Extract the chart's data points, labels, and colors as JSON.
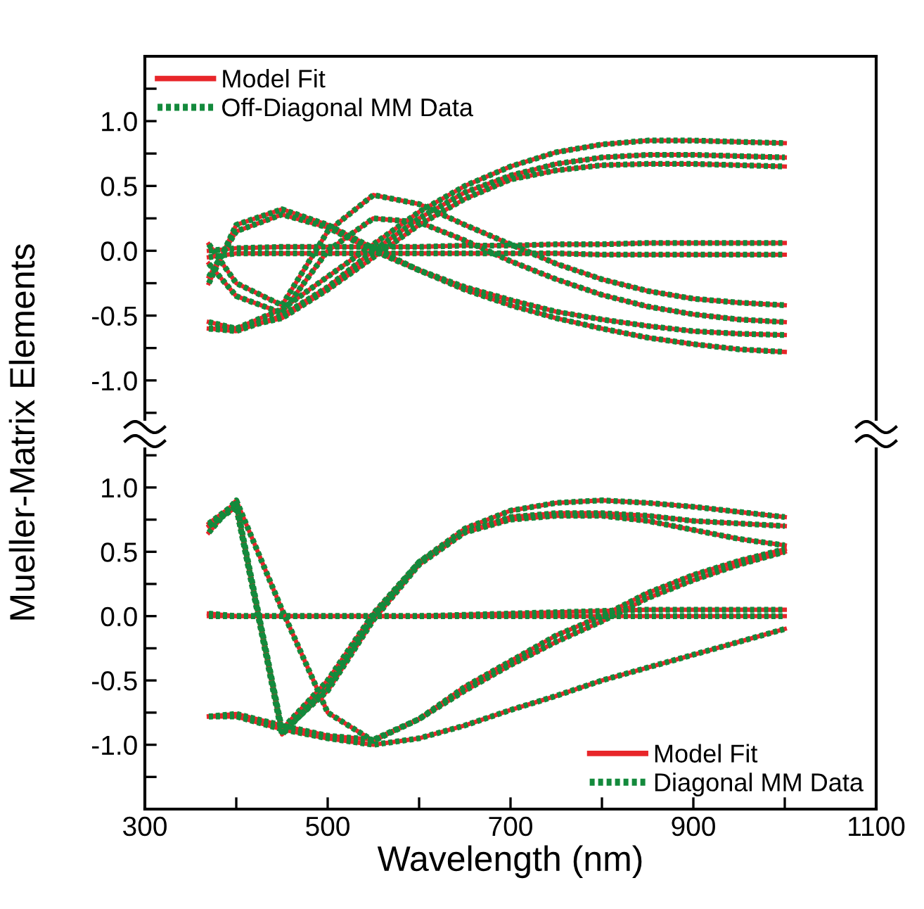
{
  "chart_data": [
    {
      "type": "line",
      "ylabel": "Mueller-Matrix Elements",
      "legend": "top left",
      "tick_labels": "y",
      "grid": false,
      "xlim": [
        300,
        1100
      ],
      "ylim": [
        -1.3,
        1.5
      ],
      "yticks": [
        {
          "value": -1.25,
          "label": null
        },
        {
          "value": -1.0,
          "label": "-1.0"
        },
        {
          "value": -0.75,
          "label": null
        },
        {
          "value": -0.5,
          "label": "-0.5"
        },
        {
          "value": -0.25,
          "label": null
        },
        {
          "value": 0.0,
          "label": "0.0"
        },
        {
          "value": 0.25,
          "label": null
        },
        {
          "value": 0.5,
          "label": "0.5"
        },
        {
          "value": 0.75,
          "label": null
        },
        {
          "value": 1.0,
          "label": "1.0"
        },
        {
          "value": 1.25,
          "label": null
        }
      ],
      "x": [
        370,
        400,
        450,
        500,
        550,
        600,
        650,
        700,
        750,
        800,
        850,
        900,
        950,
        1000
      ],
      "series": [
        {
          "name": "Model Fit",
          "color": "#e8262a",
          "line_style": "solid",
          "values": [
            -0.6,
            -0.6,
            -0.45,
            -0.2,
            0.05,
            0.3,
            0.5,
            0.65,
            0.76,
            0.82,
            0.85,
            0.85,
            0.84,
            0.83
          ]
        },
        {
          "name": "Off-Diagonal MM Data",
          "color": "#138a3c",
          "line_style": "dotted",
          "values": [
            -0.6,
            -0.6,
            -0.45,
            -0.2,
            0.05,
            0.3,
            0.5,
            0.65,
            0.76,
            0.82,
            0.85,
            0.85,
            0.84,
            0.83
          ]
        },
        {
          "color": "#e8262a",
          "line_style": "solid",
          "values": [
            -0.6,
            -0.62,
            -0.5,
            -0.28,
            0.0,
            0.25,
            0.45,
            0.58,
            0.67,
            0.72,
            0.74,
            0.74,
            0.73,
            0.72
          ]
        },
        {
          "color": "#138a3c",
          "line_style": "dotted",
          "values": [
            -0.6,
            -0.62,
            -0.5,
            -0.28,
            0.0,
            0.25,
            0.45,
            0.58,
            0.67,
            0.72,
            0.74,
            0.74,
            0.73,
            0.72
          ]
        },
        {
          "color": "#e8262a",
          "line_style": "solid",
          "values": [
            -0.55,
            -0.6,
            -0.52,
            -0.3,
            -0.05,
            0.2,
            0.4,
            0.55,
            0.62,
            0.66,
            0.67,
            0.67,
            0.66,
            0.65
          ]
        },
        {
          "color": "#138a3c",
          "line_style": "dotted",
          "values": [
            -0.55,
            -0.6,
            -0.52,
            -0.3,
            -0.05,
            0.2,
            0.4,
            0.55,
            0.62,
            0.66,
            0.67,
            0.67,
            0.66,
            0.65
          ]
        },
        {
          "color": "#e8262a",
          "line_style": "solid",
          "values": [
            0.0,
            0.02,
            0.03,
            0.03,
            0.03,
            0.03,
            0.04,
            0.04,
            0.05,
            0.05,
            0.06,
            0.06,
            0.06,
            0.06
          ]
        },
        {
          "color": "#138a3c",
          "line_style": "dotted",
          "values": [
            0.0,
            0.02,
            0.03,
            0.03,
            0.03,
            0.03,
            0.04,
            0.04,
            0.05,
            0.05,
            0.06,
            0.06,
            0.06,
            0.06
          ]
        },
        {
          "color": "#e8262a",
          "line_style": "solid",
          "values": [
            -0.05,
            -0.02,
            -0.02,
            -0.02,
            -0.02,
            -0.02,
            -0.02,
            -0.02,
            -0.02,
            -0.03,
            -0.03,
            -0.03,
            -0.03,
            -0.03
          ]
        },
        {
          "color": "#138a3c",
          "line_style": "dotted",
          "values": [
            -0.05,
            -0.02,
            -0.02,
            -0.02,
            -0.02,
            -0.02,
            -0.02,
            -0.02,
            -0.02,
            -0.03,
            -0.03,
            -0.03,
            -0.03,
            -0.03
          ]
        },
        {
          "color": "#e8262a",
          "line_style": "solid",
          "values": [
            -0.25,
            0.2,
            0.32,
            0.2,
            0.02,
            -0.15,
            -0.3,
            -0.42,
            -0.52,
            -0.6,
            -0.67,
            -0.72,
            -0.76,
            -0.78
          ]
        },
        {
          "color": "#138a3c",
          "line_style": "dotted",
          "values": [
            -0.25,
            0.2,
            0.32,
            0.2,
            0.02,
            -0.15,
            -0.3,
            -0.42,
            -0.52,
            -0.6,
            -0.67,
            -0.72,
            -0.76,
            -0.78
          ]
        },
        {
          "color": "#e8262a",
          "line_style": "solid",
          "values": [
            -0.2,
            0.15,
            0.28,
            0.18,
            0.0,
            -0.15,
            -0.28,
            -0.38,
            -0.47,
            -0.53,
            -0.58,
            -0.62,
            -0.64,
            -0.65
          ]
        },
        {
          "color": "#138a3c",
          "line_style": "dotted",
          "values": [
            -0.2,
            0.15,
            0.28,
            0.18,
            0.0,
            -0.15,
            -0.28,
            -0.38,
            -0.47,
            -0.53,
            -0.58,
            -0.62,
            -0.64,
            -0.65
          ]
        },
        {
          "color": "#e8262a",
          "line_style": "solid",
          "values": [
            0.05,
            -0.25,
            -0.42,
            0.15,
            0.43,
            0.36,
            0.2,
            0.05,
            -0.1,
            -0.22,
            -0.31,
            -0.37,
            -0.4,
            -0.42
          ]
        },
        {
          "color": "#138a3c",
          "line_style": "dotted",
          "values": [
            0.05,
            -0.25,
            -0.42,
            0.15,
            0.43,
            0.36,
            0.2,
            0.05,
            -0.1,
            -0.22,
            -0.31,
            -0.37,
            -0.4,
            -0.42
          ]
        },
        {
          "color": "#e8262a",
          "line_style": "solid",
          "values": [
            -0.1,
            -0.35,
            -0.48,
            0.0,
            0.25,
            0.22,
            0.08,
            -0.08,
            -0.22,
            -0.34,
            -0.43,
            -0.49,
            -0.53,
            -0.55
          ]
        },
        {
          "color": "#138a3c",
          "line_style": "dotted",
          "values": [
            -0.1,
            -0.35,
            -0.48,
            0.0,
            0.25,
            0.22,
            0.08,
            -0.08,
            -0.22,
            -0.34,
            -0.43,
            -0.49,
            -0.53,
            -0.55
          ]
        }
      ]
    },
    {
      "type": "line",
      "xlabel": "Wavelength (nm)",
      "legend": "bottom right",
      "grid": false,
      "xlim": [
        300,
        1100
      ],
      "xticks": [
        300,
        {
          "value": 400,
          "label": null
        },
        500,
        {
          "value": 600,
          "label": null
        },
        700,
        {
          "value": 800,
          "label": null
        },
        900,
        {
          "value": 1000,
          "label": null
        },
        1100
      ],
      "ylim": [
        -1.5,
        1.3
      ],
      "yticks": [
        {
          "value": -1.25,
          "label": null
        },
        {
          "value": -1.0,
          "label": "-1.0"
        },
        {
          "value": -0.75,
          "label": null
        },
        {
          "value": -0.5,
          "label": "-0.5"
        },
        {
          "value": -0.25,
          "label": null
        },
        {
          "value": 0.0,
          "label": "0.0"
        },
        {
          "value": 0.25,
          "label": null
        },
        {
          "value": 0.5,
          "label": "0.5"
        },
        {
          "value": 0.75,
          "label": null
        },
        {
          "value": 1.0,
          "label": "1.0"
        },
        {
          "value": 1.25,
          "label": null
        }
      ],
      "x": [
        370,
        400,
        450,
        500,
        550,
        600,
        650,
        700,
        750,
        800,
        850,
        900,
        950,
        1000
      ],
      "series": [
        {
          "name": "Model Fit",
          "color": "#e8262a",
          "line_style": "solid",
          "values": [
            0.7,
            0.85,
            -0.92,
            -0.55,
            0.0,
            0.42,
            0.68,
            0.82,
            0.88,
            0.9,
            0.88,
            0.85,
            0.81,
            0.77
          ]
        },
        {
          "name": "Diagonal MM Data",
          "color": "#138a3c",
          "line_style": "dotted",
          "values": [
            0.7,
            0.85,
            -0.92,
            -0.55,
            0.0,
            0.42,
            0.68,
            0.82,
            0.88,
            0.9,
            0.88,
            0.85,
            0.81,
            0.77
          ]
        },
        {
          "color": "#e8262a",
          "line_style": "solid",
          "values": [
            0.7,
            0.85,
            -0.9,
            -0.58,
            -0.03,
            0.4,
            0.65,
            0.77,
            0.8,
            0.8,
            0.78,
            0.74,
            0.72,
            0.7
          ]
        },
        {
          "color": "#138a3c",
          "line_style": "dotted",
          "values": [
            0.7,
            0.85,
            -0.9,
            -0.58,
            -0.03,
            0.4,
            0.65,
            0.77,
            0.8,
            0.8,
            0.78,
            0.74,
            0.72,
            0.7
          ]
        },
        {
          "color": "#e8262a",
          "line_style": "solid",
          "values": [
            0.72,
            0.88,
            -0.88,
            -0.5,
            0.02,
            0.42,
            0.65,
            0.75,
            0.78,
            0.78,
            0.74,
            0.67,
            0.6,
            0.55
          ]
        },
        {
          "color": "#138a3c",
          "line_style": "dotted",
          "values": [
            0.72,
            0.88,
            -0.88,
            -0.5,
            0.02,
            0.42,
            0.65,
            0.75,
            0.78,
            0.78,
            0.74,
            0.67,
            0.6,
            0.55
          ]
        },
        {
          "color": "#e8262a",
          "line_style": "solid",
          "values": [
            0.65,
            0.9,
            0.05,
            -0.75,
            -0.97,
            -0.8,
            -0.55,
            -0.35,
            -0.15,
            0.0,
            0.18,
            0.32,
            0.43,
            0.52
          ]
        },
        {
          "color": "#138a3c",
          "line_style": "dotted",
          "values": [
            0.65,
            0.9,
            0.05,
            -0.75,
            -0.97,
            -0.8,
            -0.55,
            -0.35,
            -0.15,
            0.0,
            0.18,
            0.32,
            0.43,
            0.52
          ]
        },
        {
          "color": "#e8262a",
          "line_style": "solid",
          "values": [
            -0.78,
            -0.76,
            -0.85,
            -0.93,
            -0.96,
            -0.8,
            -0.58,
            -0.38,
            -0.2,
            -0.04,
            0.14,
            0.28,
            0.4,
            0.5
          ]
        },
        {
          "color": "#138a3c",
          "line_style": "dotted",
          "values": [
            -0.78,
            -0.76,
            -0.85,
            -0.93,
            -0.96,
            -0.8,
            -0.58,
            -0.38,
            -0.2,
            -0.04,
            0.14,
            0.28,
            0.4,
            0.5
          ]
        },
        {
          "color": "#e8262a",
          "line_style": "solid",
          "values": [
            -0.78,
            -0.78,
            -0.88,
            -0.95,
            -1.0,
            -0.95,
            -0.85,
            -0.73,
            -0.62,
            -0.5,
            -0.4,
            -0.3,
            -0.2,
            -0.1
          ]
        },
        {
          "color": "#138a3c",
          "line_style": "dotted",
          "values": [
            -0.78,
            -0.78,
            -0.88,
            -0.95,
            -1.0,
            -0.95,
            -0.85,
            -0.73,
            -0.62,
            -0.5,
            -0.4,
            -0.3,
            -0.2,
            -0.1
          ]
        },
        {
          "color": "#e8262a",
          "line_style": "solid",
          "values": [
            0.0,
            0.0,
            0.0,
            0.0,
            0.0,
            0.0,
            0.0,
            0.0,
            0.0,
            0.0,
            0.0,
            0.0,
            0.0,
            0.0
          ]
        },
        {
          "color": "#138a3c",
          "line_style": "dotted",
          "values": [
            0.0,
            0.0,
            0.0,
            0.0,
            0.0,
            0.0,
            0.0,
            0.0,
            0.0,
            0.0,
            0.0,
            0.0,
            0.0,
            0.0
          ]
        },
        {
          "color": "#e8262a",
          "line_style": "solid",
          "values": [
            0.02,
            0.0,
            0.0,
            0.0,
            0.0,
            0.0,
            0.01,
            0.02,
            0.03,
            0.04,
            0.05,
            0.05,
            0.05,
            0.05
          ]
        },
        {
          "color": "#138a3c",
          "line_style": "dotted",
          "values": [
            0.02,
            0.0,
            0.0,
            0.0,
            0.0,
            0.0,
            0.01,
            0.02,
            0.03,
            0.04,
            0.05,
            0.05,
            0.05,
            0.05
          ]
        }
      ]
    }
  ]
}
